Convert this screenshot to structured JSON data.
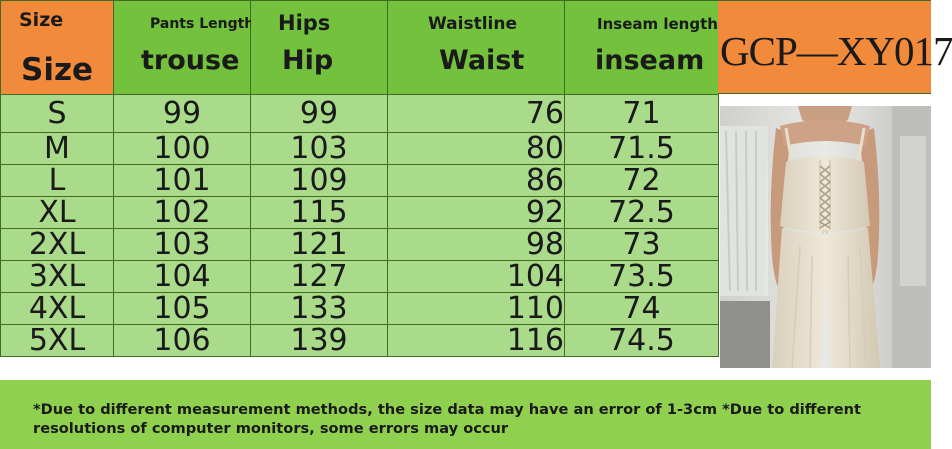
{
  "header": {
    "size": {
      "top": "Size",
      "bottom": "Size"
    },
    "trouse": {
      "top": "Pants Length",
      "bottom": "trouse"
    },
    "hip": {
      "top": "Hips",
      "bottom": "Hip"
    },
    "waist": {
      "top": "Waistline",
      "bottom": "Waist"
    },
    "inseam": {
      "top": "Inseam length",
      "bottom": "inseam"
    }
  },
  "rows": [
    {
      "size": "S",
      "trouse": "99",
      "hip": "99",
      "waist": "76",
      "inseam": "71"
    },
    {
      "size": "M",
      "trouse": "100",
      "hip": "103",
      "waist": "80",
      "inseam": "71.5"
    },
    {
      "size": "L",
      "trouse": "101",
      "hip": "109",
      "waist": "86",
      "inseam": "72"
    },
    {
      "size": "XL",
      "trouse": "102",
      "hip": "115",
      "waist": "92",
      "inseam": "72.5"
    },
    {
      "size": "2XL",
      "trouse": "103",
      "hip": "121",
      "waist": "98",
      "inseam": "73"
    },
    {
      "size": "3XL",
      "trouse": "104",
      "hip": "127",
      "waist": "104",
      "inseam": "73.5"
    },
    {
      "size": "4XL",
      "trouse": "105",
      "hip": "133",
      "waist": "110",
      "inseam": "74"
    },
    {
      "size": "5XL",
      "trouse": "106",
      "hip": "139",
      "waist": "116",
      "inseam": "74.5"
    }
  ],
  "product_code": "GCP—XY017",
  "footer_note": "*Due to different measurement methods, the size data may have an error of 1-3cm *Due to different resolutions of computer monitors, some errors may occur",
  "colors": {
    "header_green": "#73c13c",
    "header_orange": "#f18a3b",
    "cell_green": "#aadb8a",
    "footer_green": "#8fd14f"
  },
  "images": {
    "photo": "model-photo-cream-lace-up-corset-top-wide-leg-pants"
  }
}
